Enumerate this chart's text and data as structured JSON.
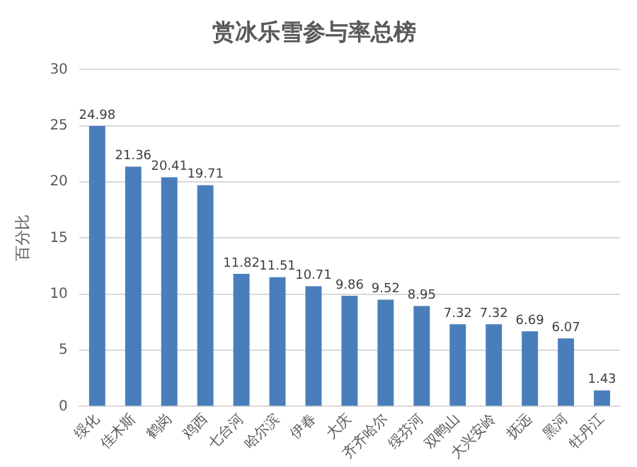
{
  "chart_data": {
    "type": "bar",
    "title": "赏冰乐雪参与率总榜",
    "ylabel": "百分比",
    "categories": [
      "绥化",
      "佳木斯",
      "鹤岗",
      "鸡西",
      "七台河",
      "哈尔滨",
      "伊春",
      "大庆",
      "齐齐哈尔",
      "绥芬河",
      "双鸭山",
      "大兴安岭",
      "抚远",
      "黑河",
      "牡丹江"
    ],
    "values": [
      24.98,
      21.36,
      20.41,
      19.71,
      11.82,
      11.51,
      10.71,
      9.86,
      9.52,
      8.95,
      7.32,
      7.32,
      6.69,
      6.07,
      1.43
    ],
    "color": "#4a7ebb",
    "ylim": [
      0,
      30
    ],
    "yticks": [
      0,
      5,
      10,
      15,
      20,
      25,
      30
    ],
    "grid": "y",
    "data_labels": true
  }
}
